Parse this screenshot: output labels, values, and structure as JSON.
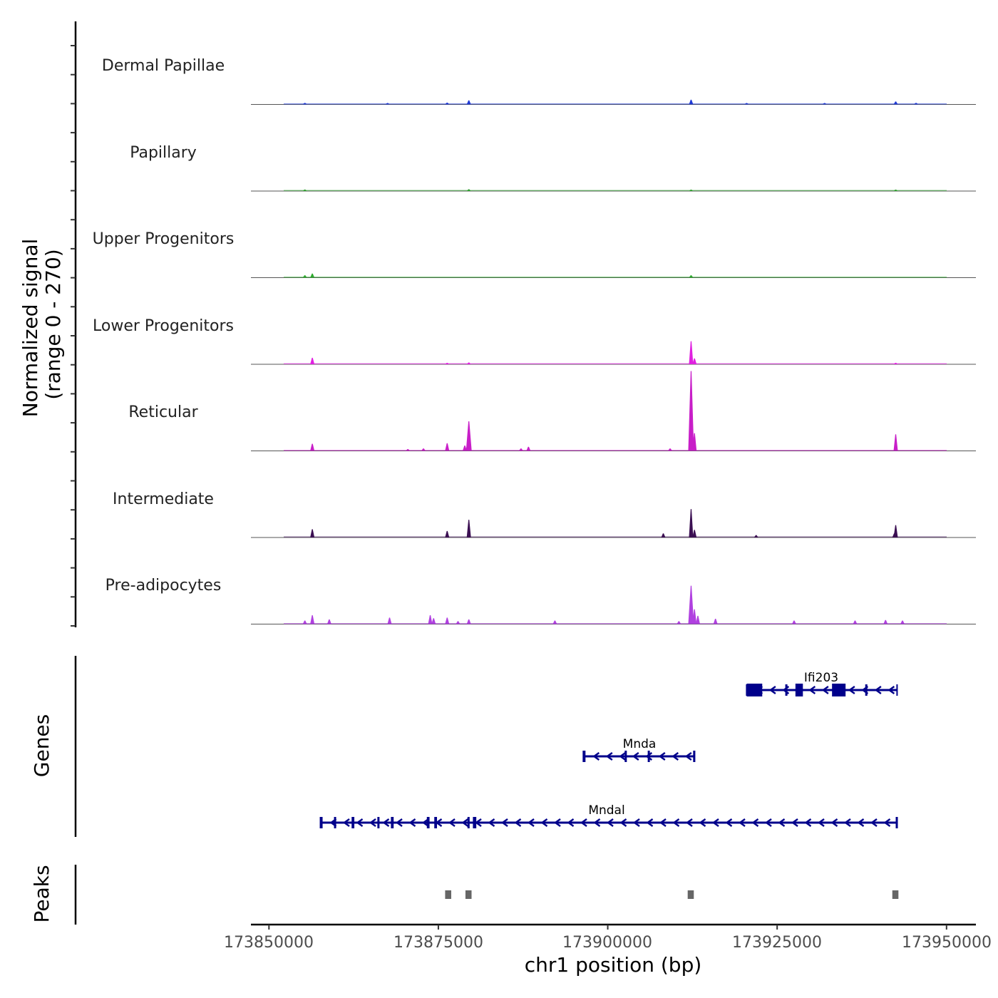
{
  "chart_data": {
    "type": "coverage",
    "chromosome": "chr1",
    "xlabel": "chr1 position (bp)",
    "xlim": [
      173850000,
      173950000
    ],
    "x_ticks": [
      173850000,
      173875000,
      173900000,
      173925000,
      173950000
    ],
    "x_tick_labels": [
      "173850000",
      "173875000",
      "173900000",
      "173925000",
      "173950000"
    ],
    "coverage_ylabel": [
      "Normalized signal",
      "(range 0 - 270)"
    ],
    "coverage_range": [
      0,
      270
    ],
    "tracks": [
      {
        "name": "Dermal Papillae",
        "color": "#1f3ad6",
        "peaks": [
          [
            173855300,
            5
          ],
          [
            173867500,
            3
          ],
          [
            173876300,
            6
          ],
          [
            173879500,
            14
          ],
          [
            173912300,
            16
          ],
          [
            173920500,
            4
          ],
          [
            173932000,
            3
          ],
          [
            173942500,
            10
          ],
          [
            173945500,
            5
          ]
        ]
      },
      {
        "name": "Papillary",
        "color": "#2e9e2e",
        "peaks": [
          [
            173855300,
            5
          ],
          [
            173879500,
            6
          ],
          [
            173912300,
            4
          ],
          [
            173942500,
            4
          ]
        ]
      },
      {
        "name": "Upper Progenitors",
        "color": "#2eaa2e",
        "peaks": [
          [
            173855300,
            8
          ],
          [
            173856400,
            14
          ],
          [
            173912300,
            8
          ]
        ]
      },
      {
        "name": "Lower Progenitors",
        "color": "#e020e0",
        "peaks": [
          [
            173856400,
            22
          ],
          [
            173876300,
            4
          ],
          [
            173879500,
            6
          ],
          [
            173912300,
            78
          ],
          [
            173912800,
            20
          ],
          [
            173942500,
            4
          ]
        ]
      },
      {
        "name": "Reticular",
        "color": "#c81ec8",
        "peaks": [
          [
            173856400,
            24
          ],
          [
            173876300,
            26
          ],
          [
            173879500,
            100
          ],
          [
            173878900,
            18
          ],
          [
            173888300,
            14
          ],
          [
            173887200,
            8
          ],
          [
            173912300,
            270
          ],
          [
            173912800,
            60
          ],
          [
            173942500,
            56
          ],
          [
            173870500,
            6
          ],
          [
            173872800,
            8
          ],
          [
            173909200,
            8
          ]
        ]
      },
      {
        "name": "Intermediate",
        "color": "#3b0f52",
        "peaks": [
          [
            173856400,
            28
          ],
          [
            173876300,
            22
          ],
          [
            173879500,
            60
          ],
          [
            173908200,
            14
          ],
          [
            173912300,
            96
          ],
          [
            173912800,
            26
          ],
          [
            173921900,
            8
          ],
          [
            173942500,
            42
          ],
          [
            173942300,
            14
          ]
        ]
      },
      {
        "name": "Pre-adipocytes",
        "color": "#b040e0",
        "peaks": [
          [
            173855300,
            12
          ],
          [
            173856400,
            30
          ],
          [
            173858900,
            16
          ],
          [
            173867800,
            22
          ],
          [
            173873800,
            30
          ],
          [
            173874300,
            20
          ],
          [
            173876300,
            22
          ],
          [
            173879500,
            16
          ],
          [
            173877900,
            10
          ],
          [
            173892200,
            12
          ],
          [
            173912300,
            130
          ],
          [
            173912800,
            50
          ],
          [
            173913300,
            28
          ],
          [
            173910500,
            10
          ],
          [
            173915900,
            18
          ],
          [
            173927500,
            12
          ],
          [
            173936500,
            12
          ],
          [
            173941000,
            14
          ],
          [
            173943500,
            12
          ]
        ]
      }
    ],
    "genes": [
      {
        "name": "Ifi203",
        "strand": "-",
        "start": 173920500,
        "end": 173942700,
        "exons": [
          [
            173920500,
            173922800
          ],
          [
            173927700,
            173928800
          ],
          [
            173933100,
            173935100
          ],
          [
            173926200,
            173926500
          ],
          [
            173938000,
            173938300
          ]
        ]
      },
      {
        "name": "Mnda",
        "strand": "-",
        "start": 173896400,
        "end": 173912800,
        "exons": [
          [
            173896400,
            173896600
          ],
          [
            173902500,
            173902800
          ],
          [
            173905900,
            173906100
          ],
          [
            173912600,
            173912800
          ]
        ]
      },
      {
        "name": "Mndal",
        "strand": "-",
        "start": 173857600,
        "end": 173942700,
        "exons": [
          [
            173857600,
            173857900
          ],
          [
            173859600,
            173859800
          ],
          [
            173862200,
            173862600
          ],
          [
            173866000,
            173866300
          ],
          [
            173868000,
            173868400
          ],
          [
            173873300,
            173873700
          ],
          [
            173874400,
            173874800
          ],
          [
            173879300,
            173879600
          ],
          [
            173880100,
            173880600
          ],
          [
            173942500,
            173942700
          ]
        ]
      }
    ],
    "peaks_track": [
      [
        173876000,
        173876900
      ],
      [
        173879000,
        173879900
      ],
      [
        173911800,
        173912700
      ],
      [
        173942000,
        173942900
      ]
    ],
    "genes_ylabel": "Genes",
    "peaks_ylabel": "Peaks"
  }
}
